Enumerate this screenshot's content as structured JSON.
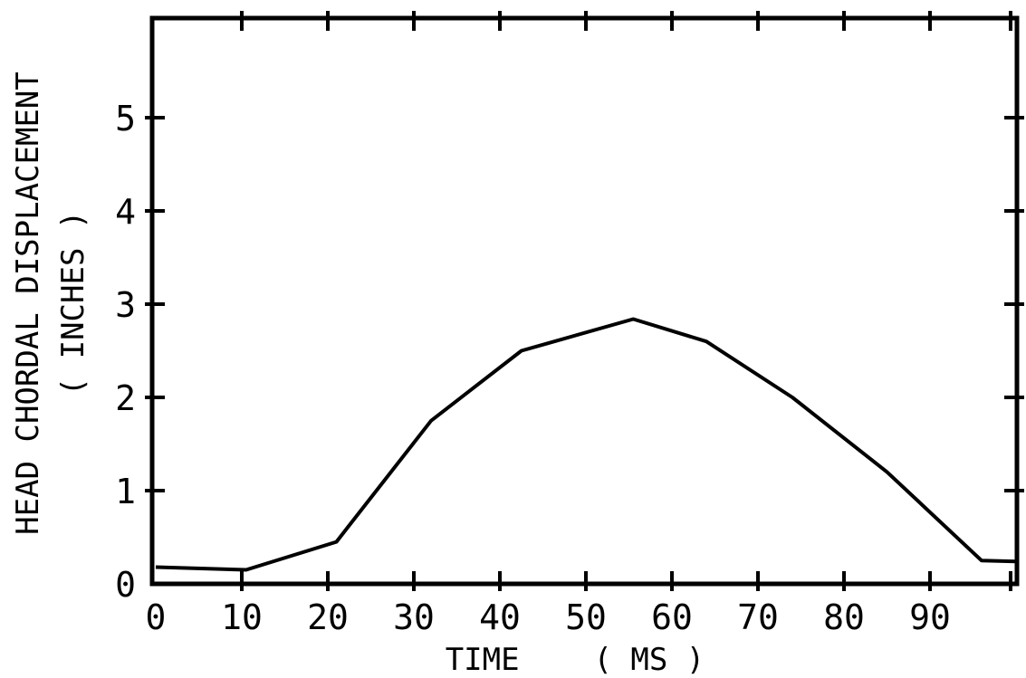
{
  "chart_data": {
    "type": "line",
    "xlabel": "TIME    ( MS )",
    "ylabel": "HEAD CHORDAL DISPLACEMENT",
    "ylabel_units": "( INCHES )",
    "xlim": [
      0,
      100
    ],
    "ylim": [
      0,
      6
    ],
    "x_ticks": [
      0,
      10,
      20,
      30,
      40,
      50,
      60,
      70,
      80,
      90
    ],
    "y_ticks": [
      0,
      1,
      2,
      3,
      4,
      5
    ],
    "grid": false,
    "series": [
      {
        "x": [
          0,
          10.5,
          21,
          32,
          42.5,
          55.5,
          64,
          74,
          85,
          96,
          100
        ],
        "y": [
          0.18,
          0.15,
          0.45,
          1.75,
          2.5,
          2.84,
          2.6,
          2.0,
          1.2,
          0.25,
          0.24
        ]
      }
    ]
  }
}
